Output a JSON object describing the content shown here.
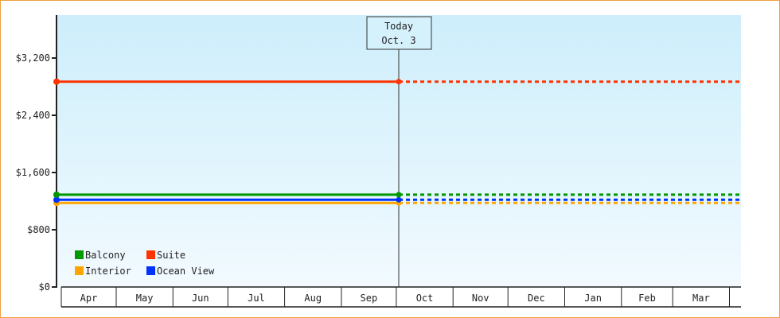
{
  "chart_data": {
    "type": "line",
    "ylim": [
      0,
      3800
    ],
    "yticks": [
      0,
      800,
      1600,
      2400,
      3200
    ],
    "ytick_labels": [
      "$0",
      "$800",
      "$1,600",
      "$2,400",
      "$3,200"
    ],
    "x_months": [
      "Apr",
      "May",
      "Jun",
      "Jul",
      "Aug",
      "Sep",
      "Oct",
      "Nov",
      "Dec",
      "Jan",
      "Feb",
      "Mar"
    ],
    "today": {
      "label": "Today",
      "date_label": "Oct. 3"
    },
    "series": [
      {
        "name": "Balcony",
        "color": "#009900",
        "value": 1290
      },
      {
        "name": "Suite",
        "color": "#ff3300",
        "value": 2870
      },
      {
        "name": "Interior",
        "color": "#ffa500",
        "value": 1175
      },
      {
        "name": "Ocean View",
        "color": "#0033ff",
        "value": 1220
      }
    ],
    "history_style": "solid",
    "forecast_style": "dashed",
    "legend_position": "bottom-left",
    "grid": false
  }
}
